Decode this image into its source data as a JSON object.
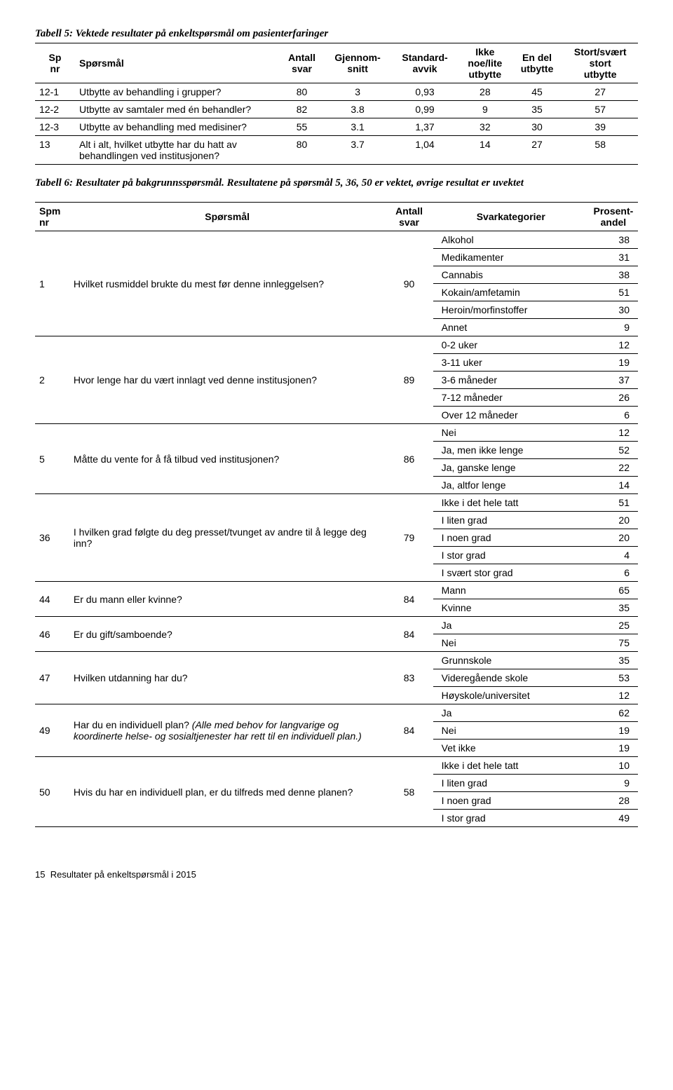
{
  "table5": {
    "title_prefix": "Tabell 5:",
    "title_rest": " Vektede resultater på enkeltspørsmål om pasienterfaringer",
    "headers": {
      "sp": "Sp\nnr",
      "question": "Spørsmål",
      "antall": "Antall\nsvar",
      "gjennom": "Gjennom-\nsnitt",
      "standard": "Standard-\navvik",
      "ikke": "Ikke\nnoe/lite\nutbytte",
      "endel": "En del\nutbytte",
      "stort": "Stort/svært\nstort\nutbytte"
    },
    "rows": [
      {
        "sp": "12-1",
        "q": "Utbytte av behandling i grupper?",
        "antall": "80",
        "gj": "3",
        "std": "0,93",
        "ikke": "28",
        "endel": "45",
        "stort": "27"
      },
      {
        "sp": "12-2",
        "q": "Utbytte av samtaler med én behandler?",
        "antall": "82",
        "gj": "3.8",
        "std": "0,99",
        "ikke": "9",
        "endel": "35",
        "stort": "57"
      },
      {
        "sp": "12-3",
        "q": "Utbytte av behandling med medisiner?",
        "antall": "55",
        "gj": "3.1",
        "std": "1,37",
        "ikke": "32",
        "endel": "30",
        "stort": "39"
      },
      {
        "sp": "13",
        "q": "Alt i alt, hvilket utbytte har du hatt av behandlingen ved institusjonen?",
        "antall": "80",
        "gj": "3.7",
        "std": "1,04",
        "ikke": "14",
        "endel": "27",
        "stort": "58"
      }
    ]
  },
  "table6": {
    "title_prefix": "Tabell 6:",
    "title_rest": " Resultater på bakgrunnsspørsmål. Resultatene på spørsmål 5, 36, 50 er vektet, øvrige resultat er uvektet",
    "headers": {
      "spm": "Spm\nnr",
      "question": "Spørsmål",
      "antall": "Antall\nsvar",
      "kategori": "Svarkategorier",
      "prosent": "Prosent-\nandel"
    },
    "groups": [
      {
        "spm": "1",
        "q": "Hvilket rusmiddel brukte du mest før denne innleggelsen?",
        "svar": "90",
        "cats": [
          {
            "c": "Alkohol",
            "p": "38"
          },
          {
            "c": "Medikamenter",
            "p": "31"
          },
          {
            "c": "Cannabis",
            "p": "38"
          },
          {
            "c": "Kokain/amfetamin",
            "p": "51"
          },
          {
            "c": "Heroin/morfinstoffer",
            "p": "30"
          },
          {
            "c": "Annet",
            "p": "9"
          }
        ]
      },
      {
        "spm": "2",
        "q": "Hvor lenge har du vært innlagt ved denne institusjonen?",
        "svar": "89",
        "cats": [
          {
            "c": "0-2 uker",
            "p": "12"
          },
          {
            "c": "3-11 uker",
            "p": "19"
          },
          {
            "c": "3-6 måneder",
            "p": "37"
          },
          {
            "c": "7-12 måneder",
            "p": "26"
          },
          {
            "c": "Over 12 måneder",
            "p": "6"
          }
        ]
      },
      {
        "spm": "5",
        "q": "Måtte du vente for å få tilbud ved institusjonen?",
        "svar": "86",
        "cats": [
          {
            "c": "Nei",
            "p": "12"
          },
          {
            "c": "Ja, men ikke lenge",
            "p": "52"
          },
          {
            "c": "Ja, ganske lenge",
            "p": "22"
          },
          {
            "c": "Ja, altfor lenge",
            "p": "14"
          }
        ]
      },
      {
        "spm": "36",
        "q": "I hvilken grad følgte du deg presset/tvunget av andre til å legge deg inn?",
        "svar": "79",
        "cats": [
          {
            "c": "Ikke i det hele tatt",
            "p": "51"
          },
          {
            "c": "I liten grad",
            "p": "20"
          },
          {
            "c": "I noen grad",
            "p": "20"
          },
          {
            "c": "I stor grad",
            "p": "4"
          },
          {
            "c": "I svært stor grad",
            "p": "6"
          }
        ]
      },
      {
        "spm": "44",
        "q": "Er du mann eller kvinne?",
        "svar": "84",
        "cats": [
          {
            "c": "Mann",
            "p": "65"
          },
          {
            "c": "Kvinne",
            "p": "35"
          }
        ]
      },
      {
        "spm": "46",
        "q": "Er du gift/samboende?",
        "svar": "84",
        "cats": [
          {
            "c": "Ja",
            "p": "25"
          },
          {
            "c": "Nei",
            "p": "75"
          }
        ]
      },
      {
        "spm": "47",
        "q": "Hvilken utdanning har du?",
        "svar": "83",
        "cats": [
          {
            "c": "Grunnskole",
            "p": "35"
          },
          {
            "c": "Videregående skole",
            "p": "53"
          },
          {
            "c": "Høyskole/universitet",
            "p": "12"
          }
        ]
      },
      {
        "spm": "49",
        "q_html": "Har du en individuell plan? <span class=\"italic-inline\">(Alle med behov for langvarige og koordinerte helse- og sosialtjenester har rett til en individuell plan.)</span>",
        "svar": "84",
        "cats": [
          {
            "c": "Ja",
            "p": "62"
          },
          {
            "c": "Nei",
            "p": "19"
          },
          {
            "c": "Vet ikke",
            "p": "19"
          }
        ]
      },
      {
        "spm": "50",
        "q": "Hvis du har en individuell plan, er du tilfreds med denne planen?",
        "svar": "58",
        "cats": [
          {
            "c": "Ikke i det hele tatt",
            "p": "10"
          },
          {
            "c": "I liten grad",
            "p": "9"
          },
          {
            "c": "I noen grad",
            "p": "28"
          },
          {
            "c": "I stor grad",
            "p": "49"
          }
        ]
      }
    ]
  },
  "footer": {
    "page": "15",
    "text": "Resultater på enkeltspørsmål i 2015"
  }
}
